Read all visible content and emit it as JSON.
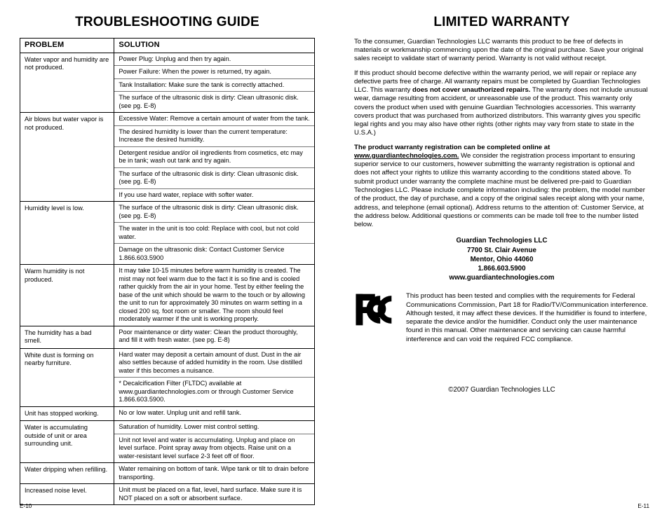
{
  "left": {
    "title": "TROUBLESHOOTING GUIDE",
    "th_problem": "PROBLEM",
    "th_solution": "SOLUTION",
    "rows": [
      {
        "problem": "Water vapor and humidity are not produced.",
        "solutions": [
          "Power Plug: Unplug and then try again.",
          "Power Failure: When the power is returned, try again.",
          "Tank Installation: Make sure the tank is correctly attached.",
          "The surface of the ultrasonic disk is dirty: Clean ultrasonic disk. (see pg. E-8)"
        ]
      },
      {
        "problem": "Air blows but water vapor is not produced.",
        "solutions": [
          "Excessive Water: Remove a certain amount of water from the tank.",
          "The desired humidity is lower than the current temperature: Increase the desired humidity.",
          "Detergent residue and/or oil ingredients from cosmetics, etc may be in tank; wash out tank and try again.",
          "The surface of the ultrasonic disk is dirty: Clean ultrasonic disk. (see pg. E-8)",
          "If you use hard water, replace with softer water."
        ]
      },
      {
        "problem": "Humidity level is low.",
        "solutions": [
          "The surface of the ultrasonic disk is dirty: Clean ultrasonic disk. (see pg. E-8)",
          "The water in the unit is too cold: Replace with cool, but not cold water.",
          "Damage on the ultrasonic disk: Contact Customer Service 1.866.603.5900"
        ]
      },
      {
        "problem": "Warm humidity is not produced.",
        "solutions": [
          "It may take 10-15 minutes before warm humidity is created. The mist may not feel warm due to the fact it is so fine and is cooled rather quickly from the air in your home. Test by either feeling the base of the unit which should be warm to the touch or by allowing the unit to run for approximately 30 minutes on warm setting in a closed 200 sq. foot room or smaller. The room should feel moderately warmer if the unit is working properly."
        ]
      },
      {
        "problem": "The humidity has a bad smell.",
        "solutions": [
          "Poor maintenance or dirty water: Clean the product thoroughly, and fill it with fresh water. (see pg. E-8)"
        ]
      },
      {
        "problem": "White dust is forming on nearby furniture.",
        "solutions": [
          "Hard water may deposit a certain amount of dust. Dust in the air also settles because of added humidity in the room. Use distilled water if this becomes a nuisance.",
          "* Decalcification Filter (FLTDC) available at www.guardiantechnologies.com or through Customer Service 1.866.603.5900."
        ]
      },
      {
        "problem": "Unit has stopped working.",
        "solutions": [
          "No or low water. Unplug unit and refill tank."
        ]
      },
      {
        "problem": "Water is accumulating outside of unit or area surrounding unit.",
        "solutions": [
          "Saturation of humidity. Lower mist control setting.",
          "Unit not level and water is accumulating. Unplug and place on level surface. Point spray away from objects. Raise unit on a water-resistant level surface 2-3 feet off of floor."
        ]
      },
      {
        "problem": "Water dripping when refilling.",
        "solutions": [
          "Water remaining on bottom of tank. Wipe tank or tilt to drain before transporting."
        ]
      },
      {
        "problem": "Increased noise level.",
        "solutions": [
          "Unit must be placed on a flat, level, hard surface. Make sure it is NOT placed on a soft or absorbent surface."
        ]
      }
    ],
    "footer": "E-10"
  },
  "right": {
    "title": "LIMITED WARRANTY",
    "p1": "To the consumer, Guardian Technologies LLC warrants this product to be free of defects in materials or workmanship commencing upon the date of the original purchase. Save your original sales receipt to validate start of warranty period. Warranty is not valid without receipt.",
    "p2a": "If this product should become defective within the warranty period, we will repair or replace any defective parts free of charge. All warranty repairs must be completed by Guardian Technologies LLC. This warranty ",
    "p2bold": "does not cover unauthorized repairs.",
    "p2b": " The warranty does not include unusual wear, damage resulting from accident, or unreasonable use of the product. This warranty only covers the product when used with genuine Guardian Technologies accessories. This warranty covers product that was purchased from authorized distributors. This warranty gives you specific legal rights and you may also have other rights (other rights may vary from state to state in the U.S.A.)",
    "p3bold": "The product warranty registration can be completed online at ",
    "p3link": "www.guardiantechnologies.com.",
    "p3rest": " We consider the registration process important to ensuring superior service to our customers, however submitting the warranty registration is optional and does not affect your rights to utilize this warranty according to the conditions stated above. To submit product under warranty the complete machine must be delivered pre-paid to Guardian Technologies LLC. Please include complete information including: the problem, the model number of the product, the day of purchase, and a copy of the original sales receipt along with your name, address, and telephone (email optional). Address returns to the attention of: Customer Service, at the address below. Additional questions or comments can be made toll free to the number listed below.",
    "addr": {
      "l1": "Guardian Technologies LLC",
      "l2": "7700 St. Clair Avenue",
      "l3": "Mentor, Ohio  44060",
      "l4": "1.866.603.5900",
      "l5": "www.guardiantechnologies.com"
    },
    "fcc": "This product has been tested and complies with the requirements for Federal Communications Commission, Part 18 for Radio/TV/Communication interference. Although tested, it may affect these devices. If the humidifier is found to interfere, separate the device and/or the humidifier. Conduct only the user maintenance found in this manual. Other maintenance and servicing can cause harmful interference and can void the required FCC compliance.",
    "copyright": "©2007 Guardian Technologies LLC",
    "footer": "E-11"
  }
}
